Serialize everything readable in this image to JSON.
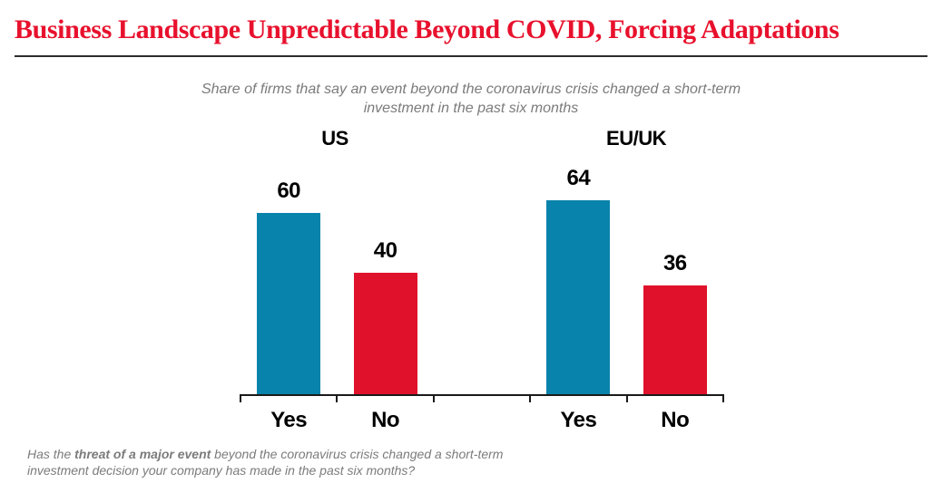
{
  "header": {
    "title": "Business Landscape Unpredictable Beyond COVID, Forcing Adaptations"
  },
  "subtitle": {
    "line1": "Share of firms that say an event beyond the coronavirus crisis changed a short-term",
    "line2": "investment in the past six months"
  },
  "chart_data": {
    "type": "bar",
    "title": "Business Landscape Unpredictable Beyond COVID, Forcing Adaptations",
    "subtitle": "Share of firms that say an event beyond the coronavirus crisis changed a short-term investment in the past six months",
    "groups": [
      {
        "label": "US",
        "bars": [
          {
            "category": "Yes",
            "value": 60,
            "color": "#0883ab"
          },
          {
            "category": "No",
            "value": 40,
            "color": "#e0112b"
          }
        ]
      },
      {
        "label": "EU/UK",
        "bars": [
          {
            "category": "Yes",
            "value": 64,
            "color": "#0883ab"
          },
          {
            "category": "No",
            "value": 36,
            "color": "#e0112b"
          }
        ]
      }
    ],
    "legend": "none",
    "y_axis": "hidden",
    "gridlines": "none",
    "value_labels_position": "above bars"
  },
  "footnote": {
    "line1_prefix": "Has the ",
    "line1_bold": "threat of a major event",
    "line1_rest": " beyond the coronavirus crisis changed a short-term",
    "line2": "investment decision your company has made in the past six months?"
  },
  "colors": {
    "title_red": "#e8112d",
    "bar_blue": "#0883ab",
    "bar_red": "#e0112b",
    "divider": "#2e2e2e",
    "axis_black": "#1a1a1a",
    "text_gray": "#7b7b7b",
    "label_black": "#000000"
  }
}
